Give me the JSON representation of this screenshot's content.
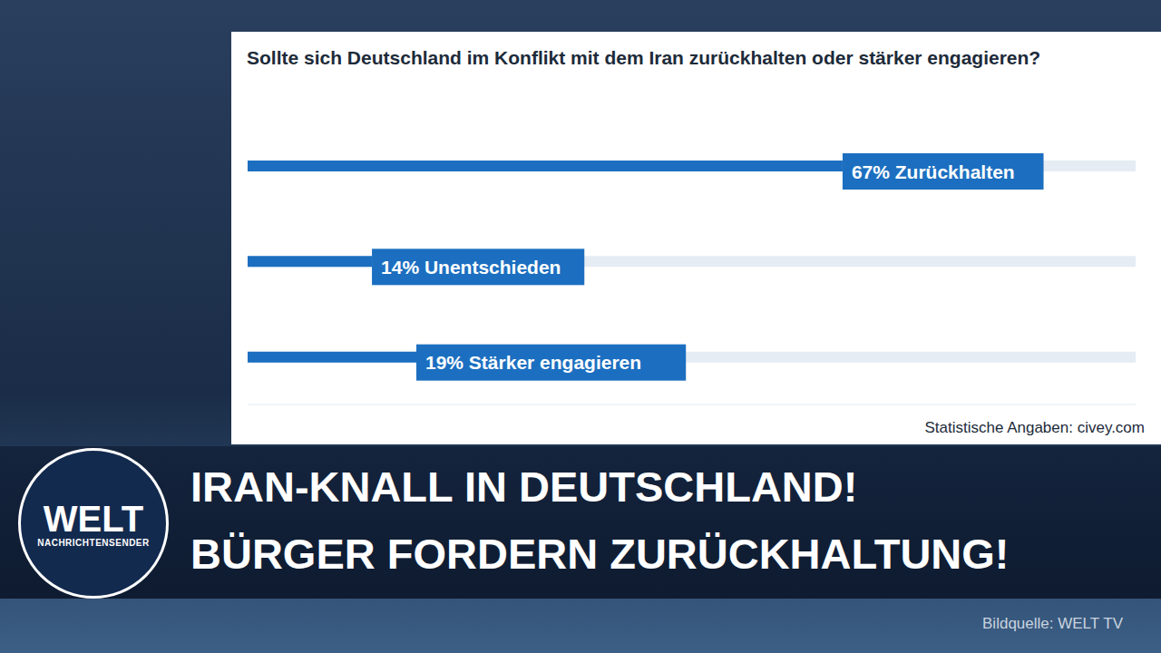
{
  "chart_data": {
    "type": "bar",
    "orientation": "horizontal",
    "title": "Sollte sich Deutschland im Konflikt mit dem Iran zurückhalten oder stärker engagieren?",
    "categories": [
      null,
      null,
      null
    ],
    "values": [
      67,
      14,
      19
    ],
    "value_labels": [
      "67% Zurückhalten",
      "14% Unentschieden",
      "19% Stärker engagieren"
    ],
    "color": "#1c6fc0",
    "xlim": [
      0,
      100
    ],
    "data_labels": true,
    "tick_labels": false,
    "grid": false,
    "annotations": [
      "Statistische Angaben: civey.com"
    ]
  },
  "overlay": {
    "headline_lines": [
      "IRAN-KNALL IN DEUTSCHLAND!",
      "BÜRGER FORDERN ZURÜCKHALTUNG!"
    ],
    "logo_text": "WELT",
    "logo_subtext": "NACHRICHTENSENDER",
    "image_credit": "Bildquelle: WELT TV"
  }
}
